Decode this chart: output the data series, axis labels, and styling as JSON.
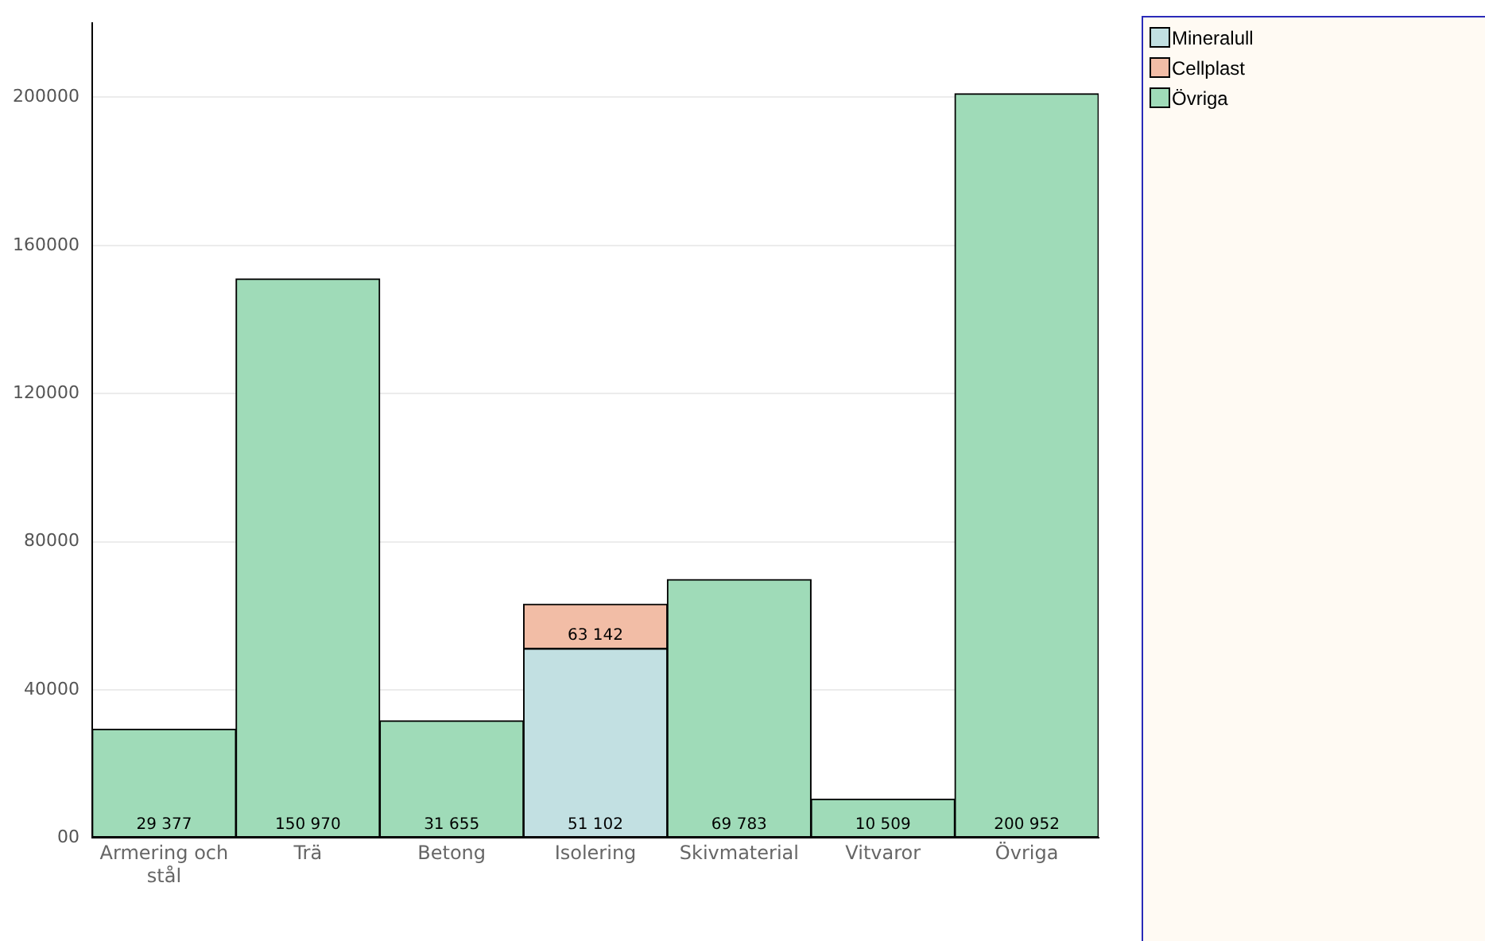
{
  "chart_data": {
    "type": "bar",
    "stacked": true,
    "categories": [
      "Armering och stål",
      "Trä",
      "Betong",
      "Isolering",
      "Skivmaterial",
      "Vitvaror",
      "Övriga"
    ],
    "series": [
      {
        "name": "Mineralull",
        "color": "#c2e0e2",
        "values": [
          null,
          null,
          null,
          51102,
          null,
          null,
          null
        ],
        "value_labels": [
          null,
          null,
          null,
          "51 102",
          null,
          null,
          null
        ]
      },
      {
        "name": "Cellplast",
        "color": "#f2bda6",
        "values": [
          null,
          null,
          null,
          12040,
          null,
          null,
          null
        ]
      },
      {
        "name": "Övriga",
        "color": "#9fdbb8",
        "values": [
          29377,
          150970,
          31655,
          null,
          69783,
          10509,
          200952
        ],
        "value_labels": [
          "29 377",
          "150 970",
          "31 655",
          null,
          "69 783",
          "10 509",
          "200 952"
        ]
      }
    ],
    "totals": [
      null,
      null,
      null,
      "63 142",
      null,
      null,
      null
    ],
    "ylim": [
      0,
      220000
    ],
    "yticks": [
      {
        "value": 0,
        "label": "00"
      },
      40000,
      80000,
      120000,
      160000,
      200000
    ],
    "grid": "y",
    "legend": "top right"
  }
}
